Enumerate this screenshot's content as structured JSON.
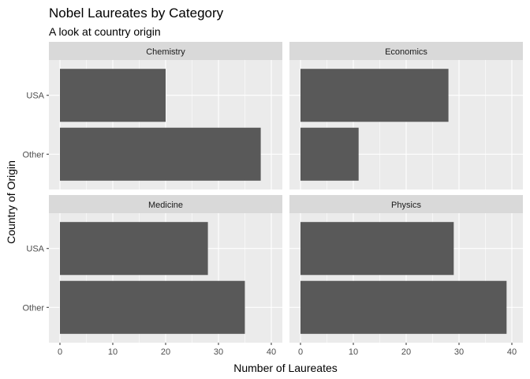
{
  "chart_data": {
    "type": "bar",
    "orientation": "horizontal",
    "title": "Nobel Laureates by Category",
    "subtitle": "A look at country origin",
    "xlabel": "Number of Laureates",
    "ylabel": "Country of Origin",
    "categories": [
      "USA",
      "Other"
    ],
    "xlim": [
      0,
      40
    ],
    "xticks": [
      0,
      10,
      20,
      30,
      40
    ],
    "grid": true,
    "facets": [
      {
        "name": "Chemistry",
        "values": [
          20,
          38
        ]
      },
      {
        "name": "Economics",
        "values": [
          28,
          11
        ]
      },
      {
        "name": "Medicine",
        "values": [
          28,
          35
        ]
      },
      {
        "name": "Physics",
        "values": [
          29,
          39
        ]
      }
    ],
    "colors": {
      "bar": "#595959",
      "panel": "#ebebeb",
      "strip": "#d9d9d9",
      "grid_major": "#ffffff",
      "tick": "#333333"
    }
  }
}
